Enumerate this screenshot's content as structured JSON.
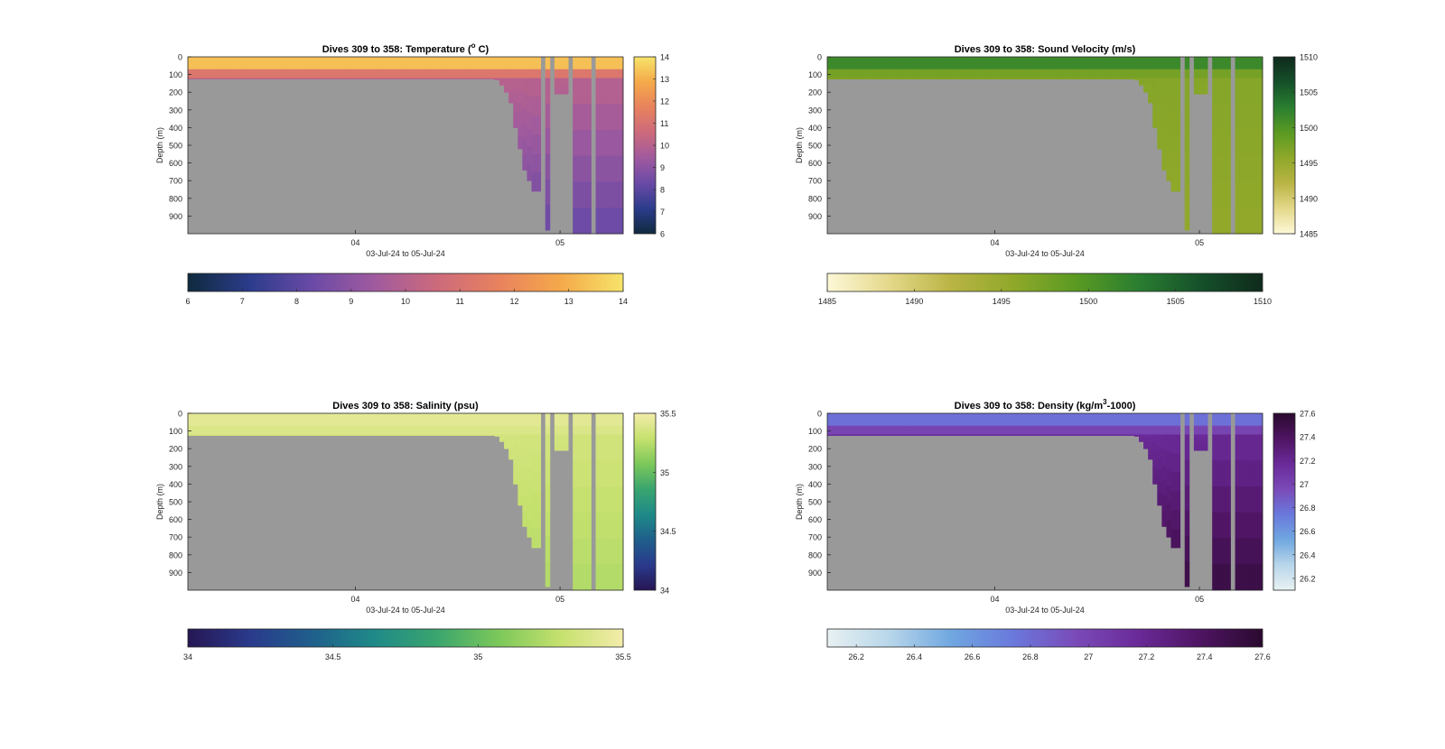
{
  "chart_data": [
    {
      "type": "heatmap",
      "title": "Dives 309 to 358: Temperature (° C)",
      "title_parts": [
        "Dives 309 to 358: Temperature (",
        "o",
        " C)"
      ],
      "title_mode": "super",
      "xlabel": "03-Jul-24 to 05-Jul-24",
      "ylabel": "Depth (m)",
      "x_ticks": [
        "04",
        "05"
      ],
      "y_ticks": [
        "0",
        "100",
        "200",
        "300",
        "400",
        "500",
        "600",
        "700",
        "800",
        "900"
      ],
      "ylim": [
        0,
        1000
      ],
      "colormap": [
        "#0f2a3d",
        "#2c3c8c",
        "#6a4aa6",
        "#a05a9e",
        "#cc6a7c",
        "#e8825e",
        "#f5a94a",
        "#f6e46a"
      ],
      "clim": [
        6,
        14
      ],
      "side_colorbar_ticks": [
        "6",
        "7",
        "8",
        "9",
        "10",
        "11",
        "12",
        "13",
        "14"
      ],
      "bottom_colorbar_ticks": [
        "6",
        "7",
        "8",
        "9",
        "10",
        "11",
        "12",
        "13",
        "14"
      ],
      "surface_value": 13.3,
      "deep_value": 8.2,
      "surface_layer_depth": 70,
      "mid_layer_depth": 120,
      "mid_value": 11.2,
      "background_value": 10.3,
      "inactive_color": "#999999"
    },
    {
      "type": "heatmap",
      "title": "Dives 309 to 358: Sound Velocity (m/s)",
      "title_parts": [
        "Dives 309 to 358: Sound Velocity (m/s)",
        "",
        ""
      ],
      "title_mode": "none",
      "xlabel": "03-Jul-24 to 05-Jul-24",
      "ylabel": "Depth (m)",
      "x_ticks": [
        "04",
        "05"
      ],
      "y_ticks": [
        "0",
        "100",
        "200",
        "300",
        "400",
        "500",
        "600",
        "700",
        "800",
        "900"
      ],
      "ylim": [
        0,
        1000
      ],
      "colormap": [
        "#fdf8d8",
        "#e4d88a",
        "#b9b444",
        "#8fa82a",
        "#5a9a22",
        "#2a7e30",
        "#15502a",
        "#0f2a1c"
      ],
      "clim": [
        1485,
        1510
      ],
      "side_colorbar_ticks": [
        "1485",
        "1490",
        "1495",
        "1500",
        "1505",
        "1510"
      ],
      "bottom_colorbar_ticks": [
        "1485",
        "1490",
        "1495",
        "1500",
        "1505",
        "1510"
      ],
      "surface_value": 1501.5,
      "deep_value": 1495.5,
      "surface_layer_depth": 70,
      "mid_layer_depth": 120,
      "mid_value": 1497.5,
      "background_value": 1496.5,
      "inactive_color": "#999999"
    },
    {
      "type": "heatmap",
      "title": "Dives 309 to 358: Salinity (psu)",
      "title_parts": [
        "Dives 309 to 358: Salinity (psu)",
        "",
        ""
      ],
      "title_mode": "none",
      "xlabel": "03-Jul-24 to 05-Jul-24",
      "ylabel": "Depth (m)",
      "x_ticks": [
        "04",
        "05"
      ],
      "y_ticks": [
        "0",
        "100",
        "200",
        "300",
        "400",
        "500",
        "600",
        "700",
        "800",
        "900"
      ],
      "ylim": [
        0,
        1000
      ],
      "colormap": [
        "#261653",
        "#2a3a8c",
        "#1f5f8b",
        "#1f8a88",
        "#3aa56e",
        "#7cc85a",
        "#c6e16e",
        "#f3ecaa"
      ],
      "clim": [
        34,
        35.5
      ],
      "side_colorbar_ticks": [
        "34",
        "34.5",
        "35",
        "35.5"
      ],
      "bottom_colorbar_ticks": [
        "34",
        "34.5",
        "35",
        "35.5"
      ],
      "surface_value": 35.42,
      "deep_value": 35.22,
      "surface_layer_depth": 70,
      "mid_layer_depth": 120,
      "mid_value": 35.38,
      "background_value": 35.36,
      "inactive_color": "#999999"
    },
    {
      "type": "heatmap",
      "title": "Dives 309 to 358: Density (kg/m³-1000)",
      "title_parts": [
        "Dives 309 to 358: Density (kg/m",
        "3",
        "-1000)"
      ],
      "title_mode": "super",
      "xlabel": "03-Jul-24 to 05-Jul-24",
      "ylabel": "Depth (m)",
      "x_ticks": [
        "04",
        "05"
      ],
      "y_ticks": [
        "0",
        "100",
        "200",
        "300",
        "400",
        "500",
        "600",
        "700",
        "800",
        "900"
      ],
      "ylim": [
        0,
        1000
      ],
      "colormap": [
        "#e8f1f2",
        "#b8d6ea",
        "#6fa7e0",
        "#6a78dc",
        "#7a4ab8",
        "#6a2a98",
        "#4e1462",
        "#2a0a2e"
      ],
      "clim": [
        26.1,
        27.6
      ],
      "side_colorbar_ticks": [
        "26.2",
        "26.4",
        "26.6",
        "26.8",
        "27",
        "27.2",
        "27.4",
        "27.6"
      ],
      "bottom_colorbar_ticks": [
        "26.2",
        "26.4",
        "26.6",
        "26.8",
        "27",
        "27.2",
        "27.4",
        "27.6"
      ],
      "surface_value": 26.78,
      "deep_value": 27.52,
      "surface_layer_depth": 70,
      "mid_layer_depth": 120,
      "mid_value": 27.0,
      "background_value": 27.12,
      "inactive_color": "#999999"
    }
  ],
  "dive_profile": {
    "max_depths": [
      125,
      125,
      125,
      125,
      125,
      125,
      125,
      125,
      125,
      125,
      125,
      125,
      125,
      125,
      125,
      125,
      125,
      125,
      125,
      125,
      125,
      125,
      125,
      125,
      125,
      125,
      125,
      125,
      125,
      125,
      125,
      125,
      125,
      125,
      125,
      125,
      125,
      125,
      125,
      125,
      125,
      125,
      125,
      125,
      125,
      125,
      125,
      125,
      125,
      125,
      125,
      125,
      125,
      125,
      125,
      125,
      125,
      125,
      125,
      125,
      125,
      125,
      125,
      125,
      125,
      125,
      125,
      130,
      160,
      200,
      260,
      400,
      520,
      640,
      700,
      760,
      760,
      0,
      980,
      0,
      210,
      210,
      210,
      0,
      1000,
      1000,
      1000,
      1000,
      0,
      1000,
      1000,
      1000,
      1000,
      1000,
      1000
    ]
  }
}
